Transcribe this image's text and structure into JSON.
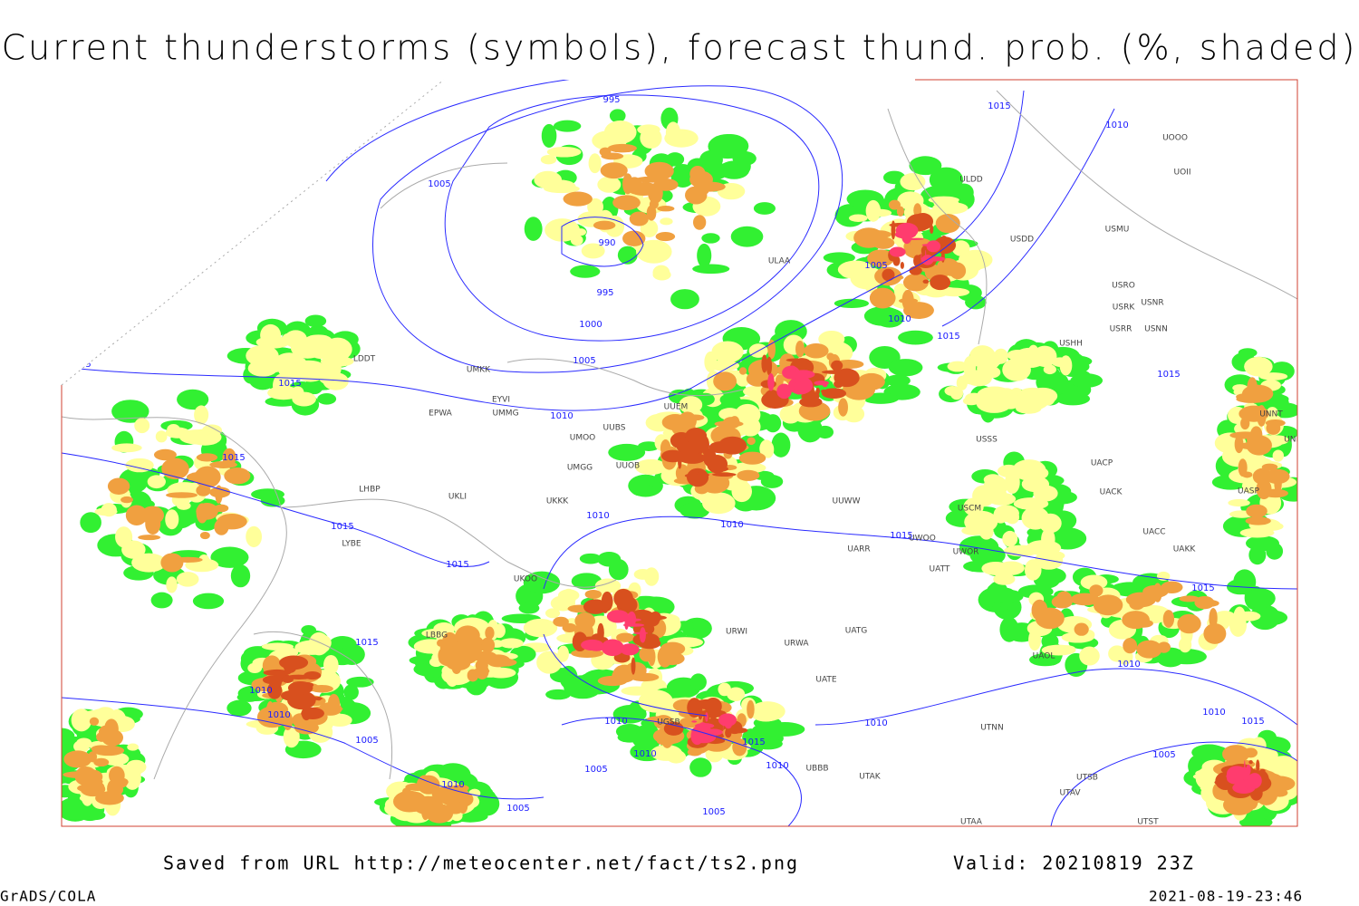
{
  "header": {
    "title": "Current thunderstorms (symbols), forecast thund. prob. (%, shaded)"
  },
  "map": {
    "isobar_labels": [
      995,
      1005,
      990,
      995,
      1000,
      1005,
      1015,
      1015,
      1010,
      1015,
      1015,
      1015,
      1010,
      1010,
      1005,
      1010,
      1015,
      1015,
      1010,
      1015,
      1015,
      1015,
      1010,
      1010,
      1015,
      1005,
      1015,
      1010,
      1010,
      1005,
      1010,
      1005,
      1005,
      1010,
      1010,
      1015,
      1010,
      1005,
      1010
    ],
    "stations": [
      "ULDD",
      "USDD",
      "USMU",
      "UOOO",
      "UOII",
      "ULAA",
      "USRO",
      "USRK",
      "USNR",
      "USRR",
      "USNN",
      "USHH",
      "UMKK",
      "EYVI",
      "EPWA",
      "UMMG",
      "UMOO",
      "UUBS",
      "UUEM",
      "UMGG",
      "UUOB",
      "UKKK",
      "UKLI",
      "LHBP",
      "USSS",
      "UACP",
      "UACK",
      "UASP",
      "UNNT",
      "UNBB",
      "UUWW",
      "USCM",
      "UATT",
      "UWOO",
      "UWOR",
      "UARR",
      "UACC",
      "UAKK",
      "UKOO",
      "LBBG",
      "URWI",
      "UATG",
      "URWA",
      "UATE",
      "UAOL",
      "UTNN",
      "UBBB",
      "UTAK",
      "UTSB",
      "UTAV",
      "UTAA",
      "UTST",
      "UGSB",
      "LYBE",
      "LDDT"
    ]
  },
  "footer": {
    "source": "Saved from URL http://meteocenter.net/fact/ts2.png",
    "valid": "Valid: 20210819 23Z",
    "software": "GrADS/COLA",
    "timestamp": "2021-08-19-23:46"
  }
}
